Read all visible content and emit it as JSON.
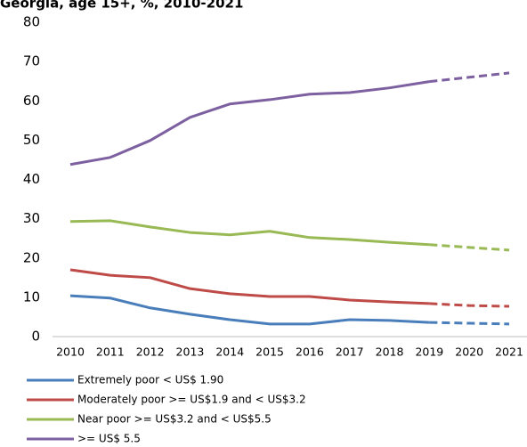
{
  "chart_data": {
    "type": "line",
    "title": "Georgia, age 15+, %, 2010-2021",
    "categories": [
      "2010",
      "2011",
      "2012",
      "2013",
      "2014",
      "2015",
      "2016",
      "2017",
      "2018",
      "2019",
      "2020",
      "2021"
    ],
    "dashed_from": "2019",
    "series": [
      {
        "name": "Extremely poor < US$ 1.90",
        "color": "#4a7ebb",
        "values": [
          10.4,
          9.8,
          7.3,
          5.7,
          4.3,
          3.2,
          3.2,
          4.3,
          4.1,
          3.6,
          3.4,
          3.2
        ]
      },
      {
        "name": "Moderately poor >= US$1.9 and < US$3.2",
        "color": "#be4b48",
        "values": [
          17.0,
          15.6,
          15.0,
          12.2,
          10.9,
          10.2,
          10.2,
          9.3,
          8.8,
          8.4,
          7.9,
          7.7
        ]
      },
      {
        "name": "Near poor >= US$3.2 and < US$5.5",
        "color": "#98b954",
        "values": [
          29.3,
          29.5,
          27.9,
          26.5,
          25.9,
          26.8,
          25.2,
          24.7,
          24.0,
          23.4,
          22.7,
          22.0
        ]
      },
      {
        "name": ">= US$ 5.5",
        "color": "#7d60a0",
        "values": [
          43.8,
          45.6,
          49.9,
          55.8,
          59.2,
          60.3,
          61.7,
          62.1,
          63.3,
          64.9,
          66.0,
          67.1
        ]
      }
    ],
    "ylim": [
      0,
      80
    ],
    "yticks": [
      0,
      10,
      20,
      30,
      40,
      50,
      60,
      70,
      80
    ],
    "grid": false
  }
}
